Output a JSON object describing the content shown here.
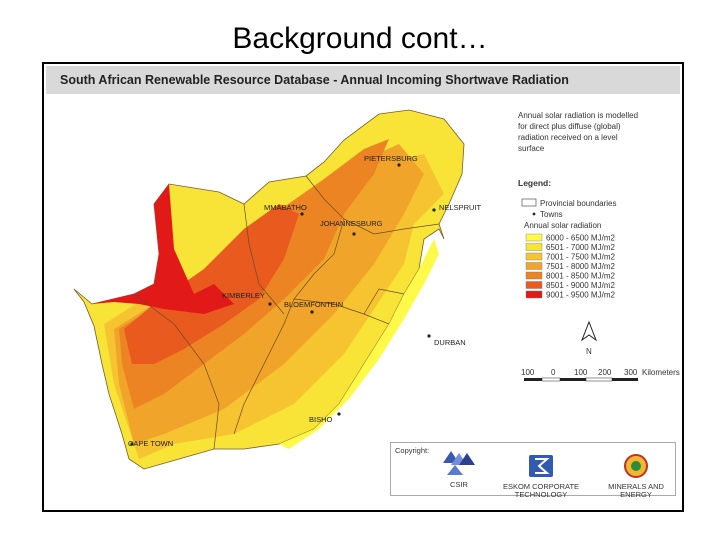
{
  "slide": {
    "title": "Background cont…"
  },
  "map": {
    "header": "South African Renewable Resource Database - Annual Incoming Shortwave Radiation",
    "description": [
      "Annual solar radiation is modelled",
      "for direct plus diffuse (global)",
      "radiation received on a level",
      "surface"
    ],
    "legend": {
      "title": "Legend:",
      "provincial_boundaries": "Provincial boundaries",
      "towns": "Towns",
      "radiation_title": "Annual solar radiation",
      "classes": [
        {
          "label": "6000 - 6500 MJ/m2",
          "color": "#fff94a"
        },
        {
          "label": "6501 - 7000 MJ/m2",
          "color": "#f7e436"
        },
        {
          "label": "7001 - 7500 MJ/m2",
          "color": "#f6c431"
        },
        {
          "label": "7501 - 8000 MJ/m2",
          "color": "#f0a52a"
        },
        {
          "label": "8001 - 8500 MJ/m2",
          "color": "#ec8424"
        },
        {
          "label": "8501 - 9000 MJ/m2",
          "color": "#e85a1e"
        },
        {
          "label": "9001 - 9500 MJ/m2",
          "color": "#e11919"
        }
      ]
    },
    "north_label": "N",
    "scale": {
      "ticks": [
        "100",
        "0",
        "100",
        "200",
        "300"
      ],
      "unit": "Kilometers"
    },
    "towns": [
      {
        "name": "PIETERSBURG"
      },
      {
        "name": "MMABATHO"
      },
      {
        "name": "NELSPRUIT"
      },
      {
        "name": "JOHANNESBURG"
      },
      {
        "name": "KIMBERLEY"
      },
      {
        "name": "BLOEMFONTEIN"
      },
      {
        "name": "DURBAN"
      },
      {
        "name": "BISHO"
      },
      {
        "name": "CAPE TOWN"
      }
    ],
    "copyright": {
      "label": "Copyright:",
      "orgs": [
        {
          "name": "CSIR"
        },
        {
          "name": "ESKOM CORPORATE\nTECHNOLOGY"
        },
        {
          "name": "MINERALS AND\nENERGY"
        }
      ]
    }
  }
}
